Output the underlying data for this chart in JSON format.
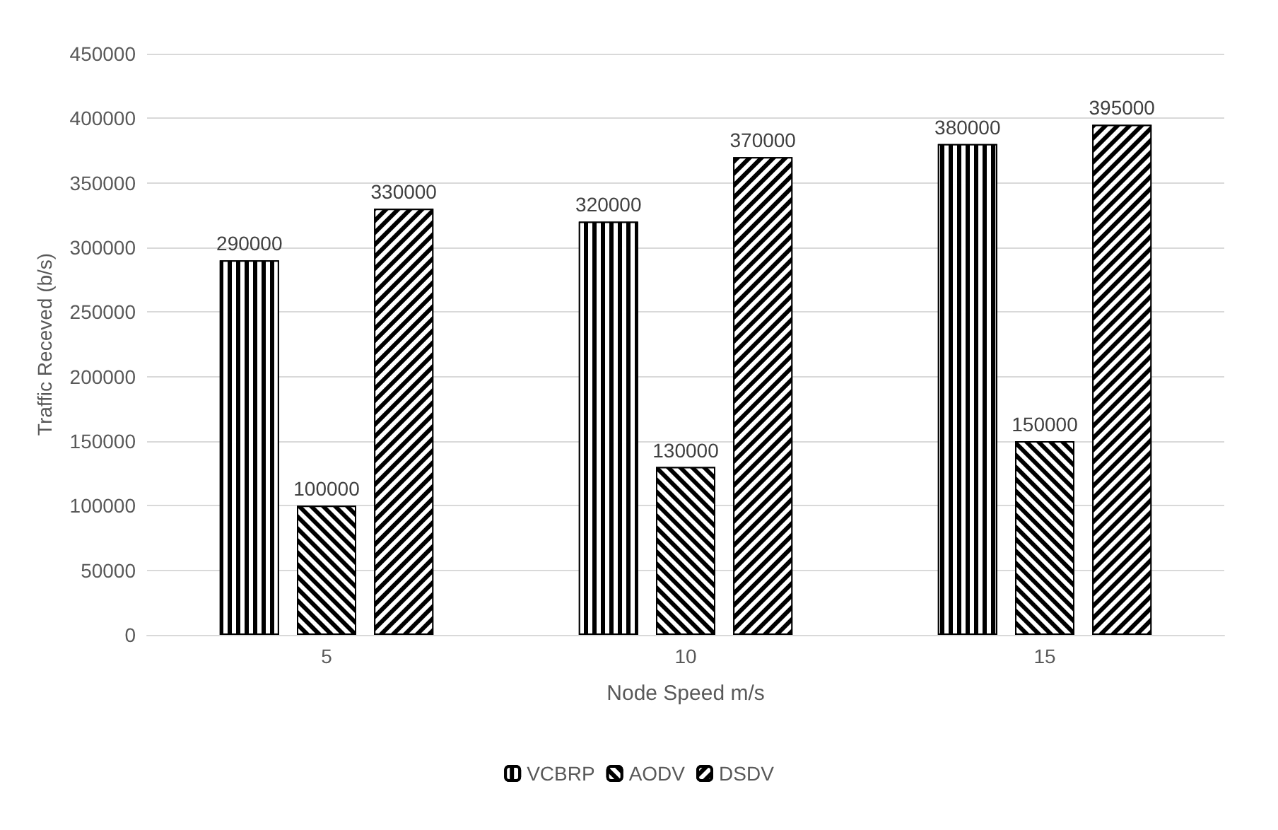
{
  "chart_data": {
    "type": "bar",
    "xlabel": "Node Speed m/s",
    "ylabel": "Traffic Receved (b/s)",
    "categories": [
      "5",
      "10",
      "15"
    ],
    "series": [
      {
        "name": "VCBRP",
        "color": "#000000",
        "values": [
          290000,
          320000,
          380000
        ]
      },
      {
        "name": "AODV",
        "color": "#000000",
        "values": [
          100000,
          130000,
          150000
        ]
      },
      {
        "name": "DSDV",
        "color": "#000000",
        "values": [
          330000,
          370000,
          395000
        ]
      }
    ],
    "ylim": [
      0,
      450000
    ],
    "yticks": [
      0,
      50000,
      100000,
      150000,
      200000,
      250000,
      300000,
      350000,
      400000,
      450000
    ],
    "grid": "y",
    "legend": "bottom",
    "data_labels": true
  }
}
